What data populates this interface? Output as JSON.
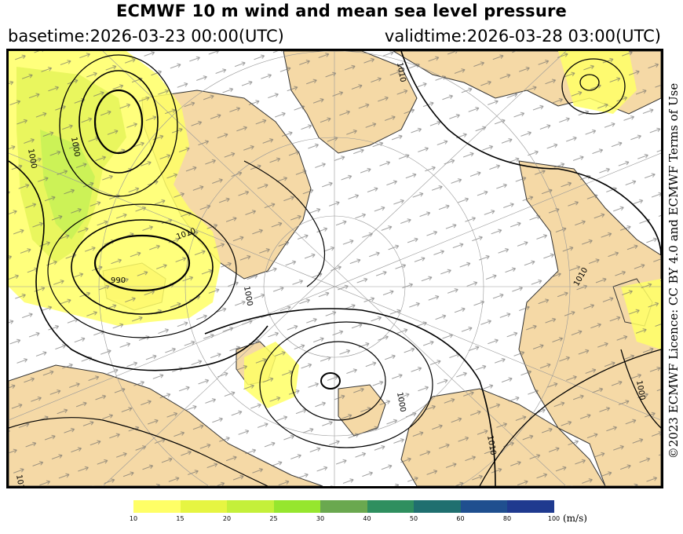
{
  "header": {
    "title": "ECMWF 10 m wind and mean sea level pressure",
    "basetime": "basetime:2026-03-23 00:00(UTC)",
    "validtime": "validtime:2026-03-28 03:00(UTC)"
  },
  "credit": "©2023 ECMWF Licence: CC BY 4.0 and ECMWF Terms of Use",
  "isobar_labels": [
    "1000",
    "1000",
    "990",
    "1010",
    "1000",
    "1000",
    "1010",
    "1000",
    "1010",
    "1010",
    "1010"
  ],
  "colors": {
    "land": "#f5d9a6",
    "sea": "#ffffff",
    "isobar": "#000000",
    "coastline": "#333333",
    "arrow": "#555555"
  },
  "colorbar": {
    "unit": "(m/s)",
    "ticks": [
      "10",
      "15",
      "20",
      "25",
      "30",
      "40",
      "50",
      "60",
      "80",
      "100"
    ],
    "colors": [
      "#ffff66",
      "#e6f542",
      "#c4f03a",
      "#96e62e",
      "#6aa84f",
      "#2f8f5f",
      "#1f6f6f",
      "#1f4f8f",
      "#1f3a8f",
      "#2e3fbf"
    ]
  }
}
